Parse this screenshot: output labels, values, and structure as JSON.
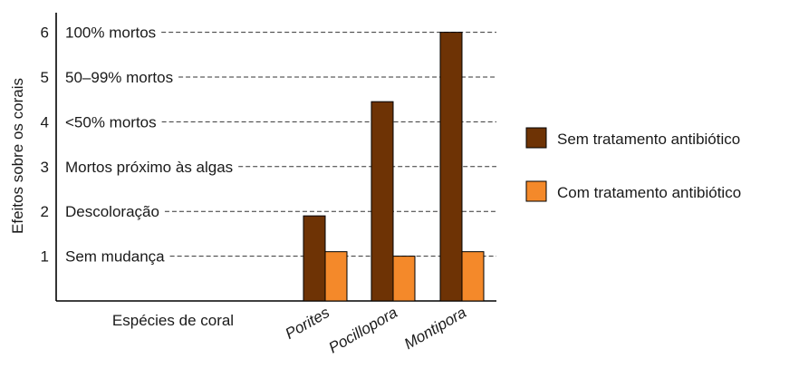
{
  "chart_data": {
    "type": "bar",
    "ylabel": "Efeitos sobre os corais",
    "xlabel": "Espécies de coral",
    "ylim": [
      0,
      6.3
    ],
    "yticks": [
      1,
      2,
      3,
      4,
      5,
      6
    ],
    "levels": [
      "Sem mudança",
      "Descoloração",
      "Mortos próximo às algas",
      "<50% mortos",
      "50–99% mortos",
      "100% mortos"
    ],
    "categories": [
      "Porites",
      "Pocillopora",
      "Montipora"
    ],
    "series": [
      {
        "name": "Sem tratamento antibiótico",
        "color": "#6e3305",
        "values": [
          1.9,
          4.45,
          6.0
        ]
      },
      {
        "name": "Com tratamento antibiótico",
        "color": "#f4892a",
        "values": [
          1.1,
          1.0,
          1.1
        ]
      }
    ],
    "grid": "dashed horizontal at each level",
    "legend": "right"
  }
}
